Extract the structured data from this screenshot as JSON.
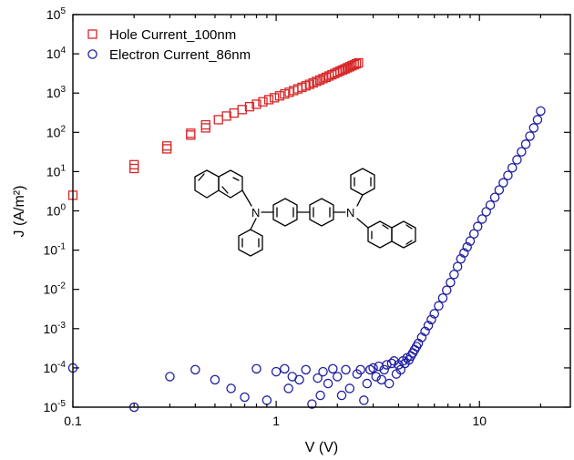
{
  "chart_data": {
    "type": "scatter",
    "xlabel": "V (V)",
    "ylabel": "J (A/m²)",
    "xscale": "log",
    "yscale": "log",
    "xlim": [
      0.1,
      28
    ],
    "ylim": [
      1e-05,
      100000.0
    ],
    "grid": false,
    "legend_position": "top-left",
    "x_tick_labels": [
      "0.1",
      "1",
      "10"
    ],
    "y_tick_labels": [
      {
        "base": "10",
        "exp": "-5"
      },
      {
        "base": "10",
        "exp": "-4"
      },
      {
        "base": "10",
        "exp": "-3"
      },
      {
        "base": "10",
        "exp": "-2"
      },
      {
        "base": "10",
        "exp": "-1"
      },
      {
        "base": "10",
        "exp": "0"
      },
      {
        "base": "10",
        "exp": "1"
      },
      {
        "base": "10",
        "exp": "2"
      },
      {
        "base": "10",
        "exp": "3"
      },
      {
        "base": "10",
        "exp": "4"
      },
      {
        "base": "10",
        "exp": "5"
      }
    ],
    "series": [
      {
        "name": "Hole Current_100nm",
        "marker": "square",
        "color": "#d62728",
        "x": [
          0.1,
          0.2,
          0.2,
          0.29,
          0.29,
          0.38,
          0.38,
          0.45,
          0.45,
          0.52,
          0.57,
          0.62,
          0.68,
          0.74,
          0.8,
          0.86,
          0.92,
          0.98,
          1.04,
          1.1,
          1.16,
          1.22,
          1.28,
          1.34,
          1.4,
          1.46,
          1.52,
          1.58,
          1.64,
          1.7,
          1.76,
          1.82,
          1.88,
          1.94,
          2.0,
          2.06,
          2.12,
          2.18,
          2.24,
          2.3,
          2.36,
          2.42,
          2.48,
          2.54
        ],
        "y": [
          2.5,
          12,
          15,
          38,
          45,
          85,
          95,
          130,
          155,
          210,
          260,
          310,
          380,
          450,
          520,
          600,
          680,
          760,
          850,
          950,
          1050,
          1160,
          1280,
          1400,
          1530,
          1670,
          1820,
          1980,
          2150,
          2330,
          2520,
          2720,
          2930,
          3150,
          3380,
          3620,
          3870,
          4130,
          4400,
          4680,
          4970,
          5270,
          5580,
          5900
        ]
      },
      {
        "name": "Electron Current_86nm",
        "marker": "circle",
        "color": "#1f1fa0",
        "x": [
          0.1,
          0.2,
          0.3,
          0.4,
          0.5,
          0.6,
          0.7,
          0.8,
          0.9,
          1.0,
          1.1,
          1.15,
          1.2,
          1.3,
          1.4,
          1.5,
          1.6,
          1.65,
          1.7,
          1.8,
          1.9,
          2.0,
          2.1,
          2.2,
          2.3,
          2.5,
          2.6,
          2.7,
          2.8,
          2.9,
          3.0,
          3.1,
          3.2,
          3.3,
          3.4,
          3.5,
          3.6,
          3.7,
          3.8,
          3.9,
          4.0,
          4.1,
          4.2,
          4.3,
          4.4,
          4.5,
          4.6,
          4.7,
          4.8,
          4.9,
          5.0,
          5.2,
          5.4,
          5.6,
          5.8,
          6.0,
          6.3,
          6.6,
          6.9,
          7.2,
          7.5,
          7.8,
          8.1,
          8.4,
          8.7,
          9.0,
          9.4,
          9.8,
          10.3,
          10.8,
          11.3,
          11.9,
          12.5,
          13.1,
          13.8,
          14.5,
          15.3,
          16.1,
          16.9,
          17.7,
          18.5,
          19.3,
          20.0
        ],
        "y": [
          0.0001,
          1e-05,
          6e-05,
          9e-05,
          5e-05,
          3e-05,
          1.8e-05,
          9.5e-05,
          1.5e-05,
          8e-05,
          9.5e-05,
          3e-05,
          6e-05,
          5e-05,
          9e-05,
          1.2e-05,
          5.5e-05,
          2e-05,
          8e-05,
          4e-05,
          9.5e-05,
          6e-05,
          2e-05,
          9e-05,
          3e-05,
          7e-05,
          9e-05,
          1.5e-05,
          4e-05,
          9e-05,
          0.0001,
          6e-05,
          0.00011,
          5e-05,
          9e-05,
          0.00012,
          4e-05,
          0.00013,
          0.00015,
          7e-05,
          0.00012,
          9e-05,
          0.00015,
          0.00013,
          0.00018,
          0.00016,
          0.0002,
          0.00024,
          0.00029,
          0.00035,
          0.00042,
          0.0006,
          0.00085,
          0.0012,
          0.0017,
          0.0024,
          0.0038,
          0.006,
          0.0095,
          0.015,
          0.024,
          0.038,
          0.06,
          0.085,
          0.12,
          0.17,
          0.26,
          0.4,
          0.62,
          0.95,
          1.4,
          2.2,
          3.4,
          5.2,
          8.0,
          12.5,
          20,
          32,
          50,
          80,
          130,
          210,
          350
        ]
      }
    ]
  }
}
